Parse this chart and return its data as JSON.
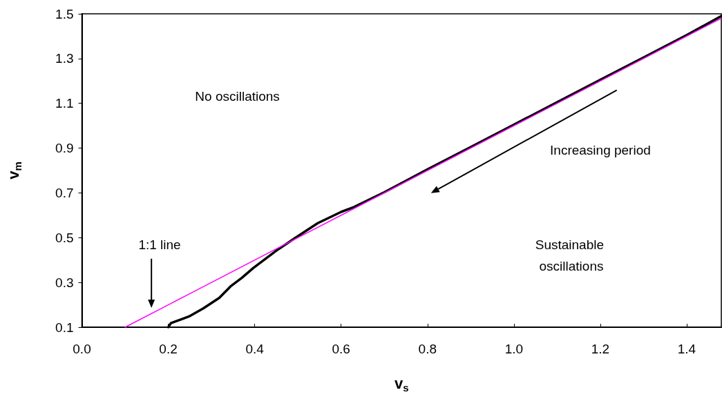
{
  "chart_data": {
    "type": "line",
    "xlabel": "v$_{s}$",
    "ylabel": "v$_{m}$",
    "xlim": [
      0,
      1.48
    ],
    "ylim": [
      0.1,
      1.5
    ],
    "xticks": [
      {
        "value": 0,
        "label": "0.0"
      },
      0.2,
      0.4,
      0.6,
      0.8,
      {
        "value": 1,
        "label": "1.0"
      },
      1.2,
      1.4
    ],
    "yticks": [
      0.1,
      0.3,
      0.5,
      0.7,
      0.9,
      1.1,
      1.3,
      1.5
    ],
    "grid": false,
    "marker": "none",
    "line_style": "solid",
    "series": [
      {
        "color": "#ff00ff",
        "x": [
          0.1,
          0.2,
          0.25,
          1.48
        ],
        "values": [
          0.1,
          0.2,
          0.25,
          1.48
        ]
      },
      {
        "color": "#000000",
        "x": [
          0.2,
          0.206,
          0.23,
          0.25,
          0.281,
          0.318,
          0.344,
          0.37,
          0.397,
          0.45,
          0.493,
          0.546,
          0.6,
          0.63,
          0.7,
          0.8,
          0.9,
          1.0,
          1.1,
          1.2,
          1.3,
          1.4,
          1.48
        ],
        "values": [
          0.1,
          0.118,
          0.135,
          0.15,
          0.184,
          0.231,
          0.282,
          0.32,
          0.365,
          0.442,
          0.498,
          0.565,
          0.615,
          0.637,
          0.703,
          0.805,
          0.905,
          1.005,
          1.105,
          1.205,
          1.305,
          1.405,
          1.49
        ]
      }
    ],
    "annotations": [
      "No oscillations",
      "Increasing period",
      "Sustainable oscillations",
      "1:1 line"
    ]
  }
}
